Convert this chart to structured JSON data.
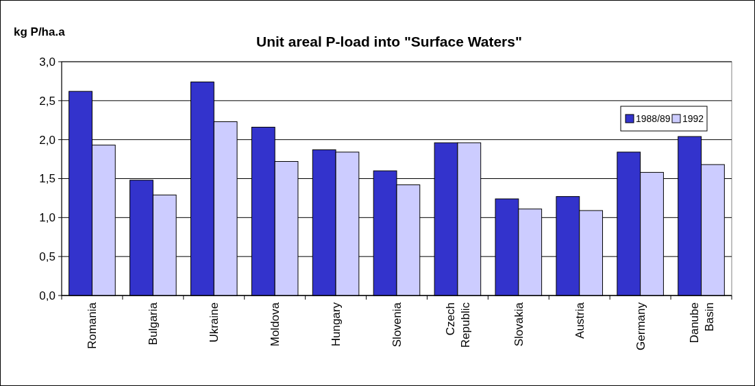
{
  "chart_data": {
    "type": "bar",
    "title": "Unit areal P-load into \"Surface Waters\"",
    "ylabel": "kg P/ha.a",
    "categories": [
      "Romania",
      "Bulgaria",
      "Ukraine",
      "Moldova",
      "Hungary",
      "Slovenia",
      "Czech Republic",
      "Slovakia",
      "Austria",
      "Germany",
      "Danube Basin"
    ],
    "series": [
      {
        "name": "1988/89",
        "color": "#3333cc",
        "values": [
          2.62,
          1.48,
          2.74,
          2.16,
          1.87,
          1.6,
          1.96,
          1.24,
          1.27,
          1.84,
          2.04
        ]
      },
      {
        "name": "1992",
        "color": "#ccccff",
        "values": [
          1.93,
          1.29,
          2.23,
          1.72,
          1.84,
          1.42,
          1.96,
          1.11,
          1.09,
          1.58,
          1.68
        ]
      }
    ],
    "ylim": [
      0,
      3
    ],
    "yticks": [
      {
        "value": 0,
        "label": "0,0"
      },
      {
        "value": 0.5,
        "label": "0,5"
      },
      {
        "value": 1,
        "label": "1,0"
      },
      {
        "value": 1.5,
        "label": "1,5"
      },
      {
        "value": 2,
        "label": "2,0"
      },
      {
        "value": 2.5,
        "label": "2,5"
      },
      {
        "value": 3,
        "label": "3,0"
      }
    ],
    "grid": "y",
    "legend": "top right"
  }
}
